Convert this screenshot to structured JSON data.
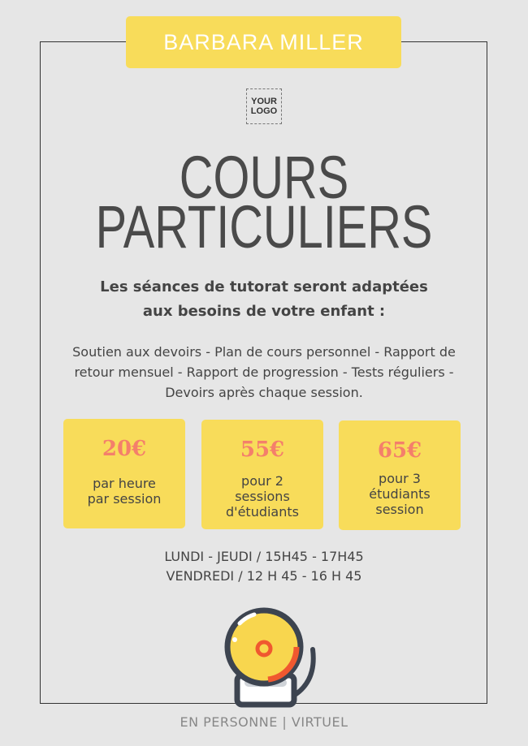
{
  "banner": {
    "name": "BARBARA MILLER"
  },
  "logo": {
    "line1": "YOUR",
    "line2": "LOGO"
  },
  "title": {
    "line1": "COURS",
    "line2": "PARTICULIERS"
  },
  "subtitle": {
    "line1": "Les séances de tutorat seront adaptées",
    "line2": "aux besoins de votre enfant :"
  },
  "description": "Soutien aux devoirs - Plan de cours personnel - Rapport de retour mensuel - Rapport de progression - Tests réguliers - Devoirs après chaque session.",
  "pricing": [
    {
      "price": "20€",
      "lines": [
        "par heure",
        "par session"
      ]
    },
    {
      "price": "55€",
      "lines": [
        "pour 2",
        "sessions",
        "d'étudiants"
      ]
    },
    {
      "price": "65€",
      "lines": [
        "pour 3",
        "étudiants",
        "session"
      ]
    }
  ],
  "schedule": {
    "line1": "LUNDI - JEUDI / 15H45 - 17H45",
    "line2": "VENDREDI / 12 H 45 - 16 H 45"
  },
  "footer": "EN PERSONNE | VIRTUEL",
  "colors": {
    "background": "#e6e6e6",
    "accent": "#f8dc5a",
    "price": "#f47f6b",
    "text": "#4a4a4a"
  },
  "icons": {
    "bottom": "bell-icon"
  }
}
